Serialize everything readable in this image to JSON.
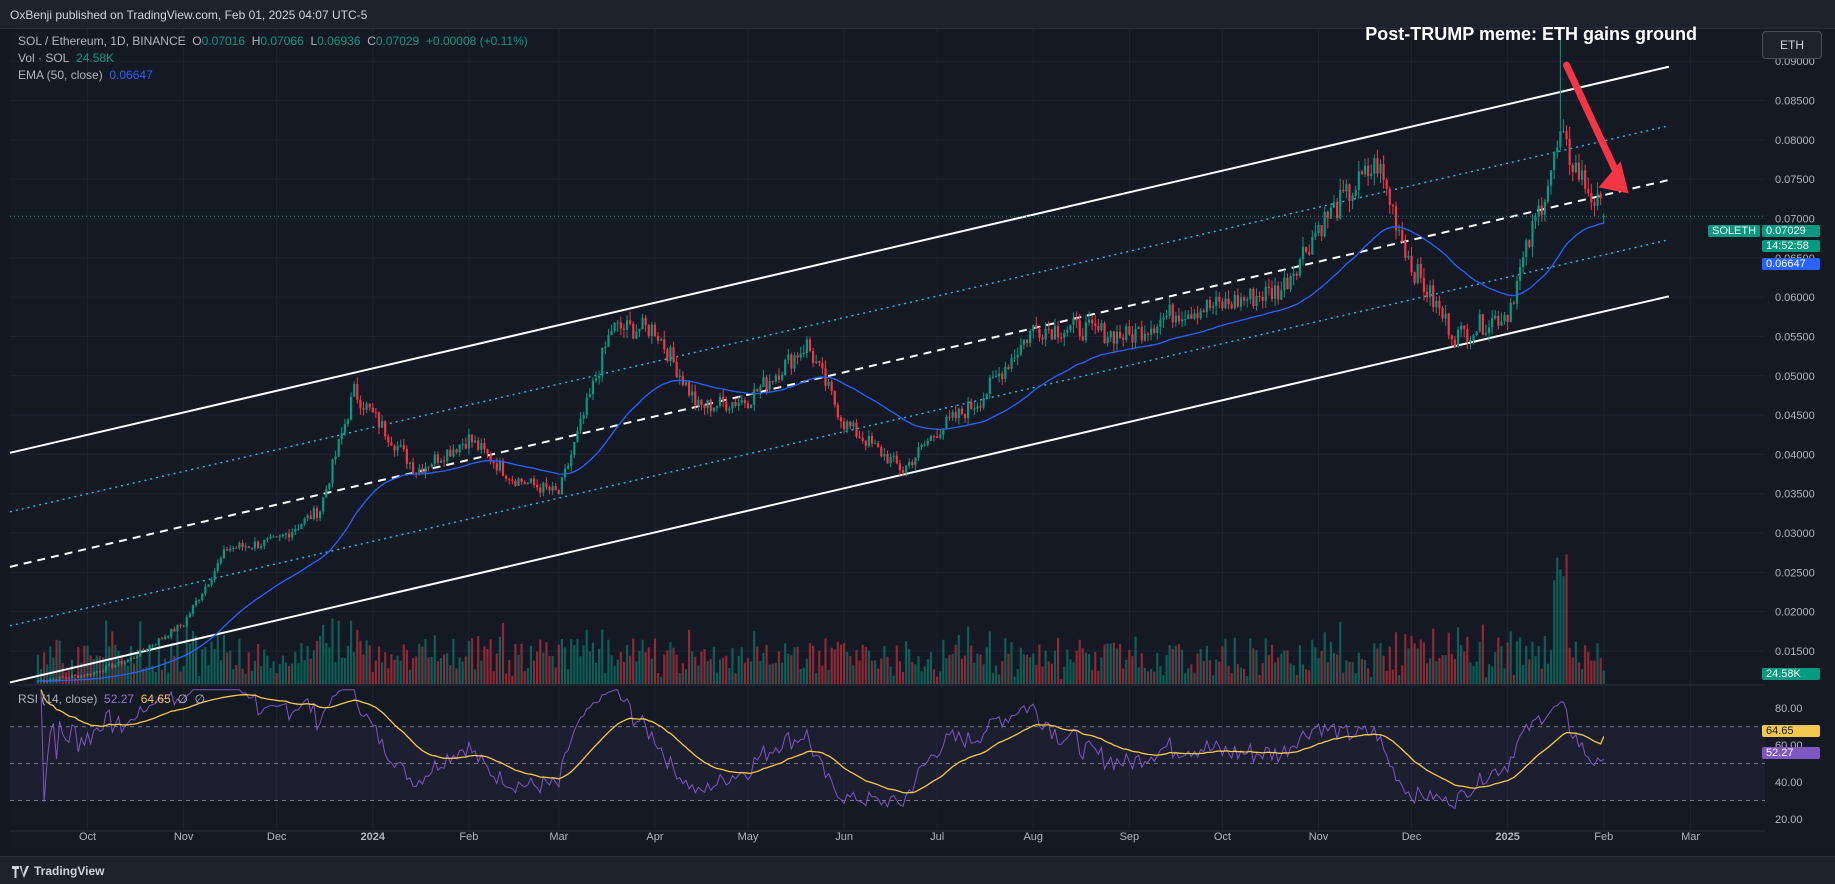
{
  "header": {
    "published": "OxBenji published on TradingView.com, Feb 01, 2025 04:07 UTC-5",
    "headline": "Post-TRUMP meme: ETH gains ground",
    "currency_button": "ETH"
  },
  "legend": {
    "symbol": "SOL / Ethereum, 1D, BINANCE",
    "o_label": "O",
    "o_value": "0.07016",
    "h_label": "H",
    "h_value": "0.07066",
    "l_label": "L",
    "l_value": "0.06936",
    "c_label": "C",
    "c_value": "0.07029",
    "change": "+0.00008 (+0.11%)",
    "vol_label": "Vol · SOL",
    "vol_value": "24.58K",
    "ema_label": "EMA (50, close)",
    "ema_value": "0.06647",
    "rsi_label": "RSI (14, close)",
    "rsi_value": "52.27",
    "rsi_ma_value": "64.65",
    "rsi_extra1": "∅",
    "rsi_extra2": "∅"
  },
  "price_tags": {
    "symbol": "SOLETH",
    "price": "0.07029",
    "countdown": "14:52:58",
    "ema": "0.06647",
    "volume": "24.58K",
    "rsi_ma": "64.65",
    "rsi": "52.27"
  },
  "colors": {
    "up": "#089981",
    "down": "#f23645",
    "ema": "#2962ff",
    "rsi": "#7e57c2",
    "rsi_ma": "#f2c94c",
    "channel": "#ffffff",
    "dotted": "#22c3e6",
    "arrow": "#f23645"
  },
  "footer": {
    "brand": "TradingView"
  },
  "chart_data": [
    {
      "type": "candlestick",
      "title": "SOL / Ethereum, 1D, BINANCE",
      "y_axis_ticks": [
        "0.09000",
        "0.08500",
        "0.08000",
        "0.07500",
        "0.07000",
        "0.06500",
        "0.06000",
        "0.05500",
        "0.05000",
        "0.04500",
        "0.04000",
        "0.03500",
        "0.03000",
        "0.02500",
        "0.02000",
        "0.01500"
      ],
      "ylim": [
        0.0108,
        0.0941
      ],
      "x_axis_ticks": [
        "Oct",
        "Nov",
        "Dec",
        "2024",
        "Feb",
        "Mar",
        "Apr",
        "May",
        "Jun",
        "Jul",
        "Aug",
        "Sep",
        "Oct",
        "Nov",
        "Dec",
        "2025",
        "Feb",
        "Mar"
      ],
      "close_path_monthly": {
        "x": [
          "2023-09-15",
          "2023-10-01",
          "2023-10-15",
          "2023-11-01",
          "2023-11-15",
          "2023-12-01",
          "2023-12-15",
          "2023-12-26",
          "2024-01-15",
          "2024-02-01",
          "2024-02-15",
          "2024-03-01",
          "2024-03-18",
          "2024-04-01",
          "2024-04-15",
          "2024-05-01",
          "2024-05-20",
          "2024-06-01",
          "2024-06-20",
          "2024-07-01",
          "2024-07-15",
          "2024-08-01",
          "2024-08-15",
          "2024-09-01",
          "2024-09-15",
          "2024-10-01",
          "2024-10-20",
          "2024-11-01",
          "2024-11-20",
          "2024-12-01",
          "2024-12-15",
          "2025-01-01",
          "2025-01-18",
          "2025-01-25",
          "2025-02-01"
        ],
        "close": [
          0.0112,
          0.012,
          0.014,
          0.0185,
          0.028,
          0.029,
          0.033,
          0.048,
          0.038,
          0.042,
          0.037,
          0.035,
          0.056,
          0.056,
          0.046,
          0.047,
          0.054,
          0.044,
          0.038,
          0.043,
          0.047,
          0.056,
          0.056,
          0.055,
          0.058,
          0.059,
          0.061,
          0.069,
          0.077,
          0.064,
          0.055,
          0.058,
          0.08,
          0.075,
          0.0703
        ]
      },
      "last": {
        "open": 0.07016,
        "high": 0.07066,
        "low": 0.06936,
        "close": 0.07029,
        "change": 8e-05,
        "change_pct": 0.11
      },
      "ema50_last": 0.06647,
      "volume_last": "24.58K",
      "annotations": [
        "Post-TRUMP meme: ETH gains ground",
        "ascending channel",
        "red down arrow toward mid-line"
      ]
    },
    {
      "type": "line",
      "title": "RSI (14, close)",
      "y_axis_ticks": [
        "80.00",
        "60.00",
        "40.00",
        "20.00"
      ],
      "ylim": [
        14,
        92
      ],
      "bands": [
        70,
        50,
        30
      ],
      "series": [
        {
          "name": "RSI",
          "last": 52.27
        },
        {
          "name": "RSI-based MA",
          "last": 64.65
        }
      ]
    }
  ]
}
